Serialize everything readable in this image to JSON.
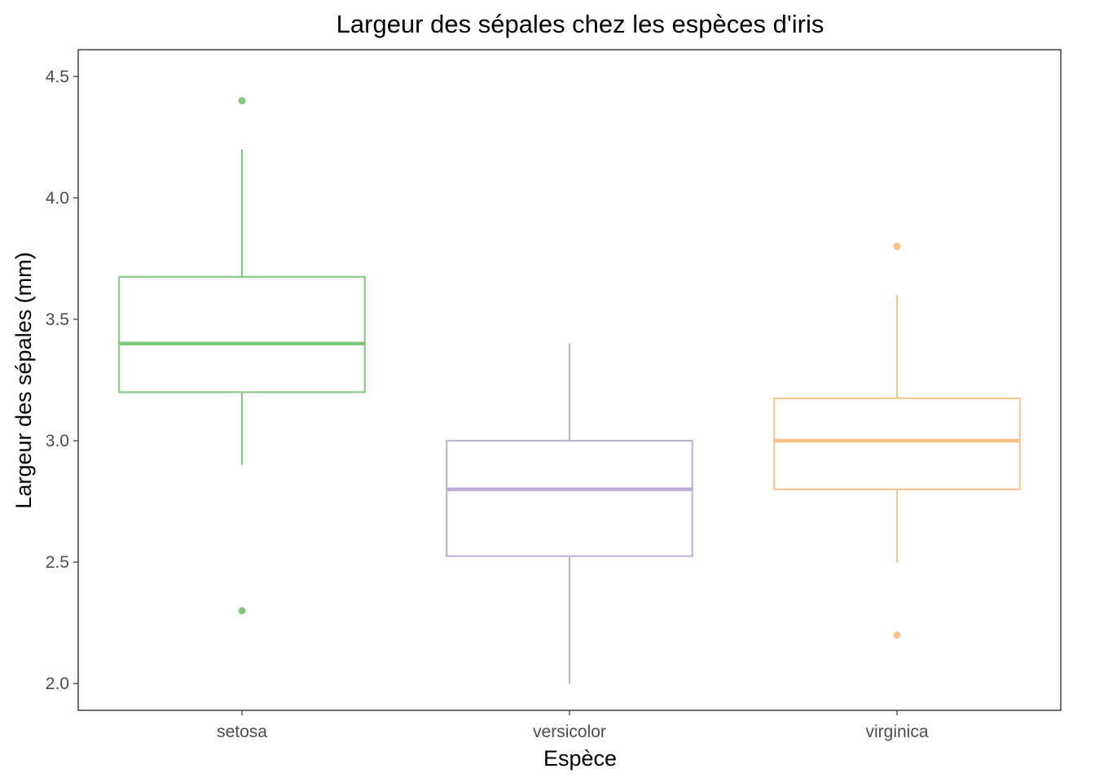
{
  "chart_data": {
    "type": "boxplot",
    "title": "Largeur des sépales chez les espèces d'iris",
    "xlabel": "Espèce",
    "ylabel": "Largeur des sépales (mm)",
    "ylim": [
      1.89,
      4.61
    ],
    "yticks": [
      2.0,
      2.5,
      3.0,
      3.5,
      4.0,
      4.5
    ],
    "ytick_labels": [
      "2.0",
      "2.5",
      "3.0",
      "3.5",
      "4.0",
      "4.5"
    ],
    "grid": false,
    "categories": [
      "setosa",
      "versicolor",
      "virginica"
    ],
    "series": [
      {
        "category": "setosa",
        "color": "#7FC97F",
        "whisker_low": 2.9,
        "q1": 3.2,
        "median": 3.4,
        "q3": 3.675,
        "whisker_high": 4.2,
        "outliers": [
          4.4,
          2.3
        ]
      },
      {
        "category": "versicolor",
        "color": "#BEAED4",
        "whisker_low": 2.0,
        "q1": 2.525,
        "median": 2.8,
        "q3": 3.0,
        "whisker_high": 3.4,
        "outliers": []
      },
      {
        "category": "virginica",
        "color": "#FDC086",
        "whisker_low": 2.5,
        "q1": 2.8,
        "median": 3.0,
        "q3": 3.175,
        "whisker_high": 3.6,
        "outliers": [
          3.8,
          2.2
        ]
      }
    ]
  }
}
